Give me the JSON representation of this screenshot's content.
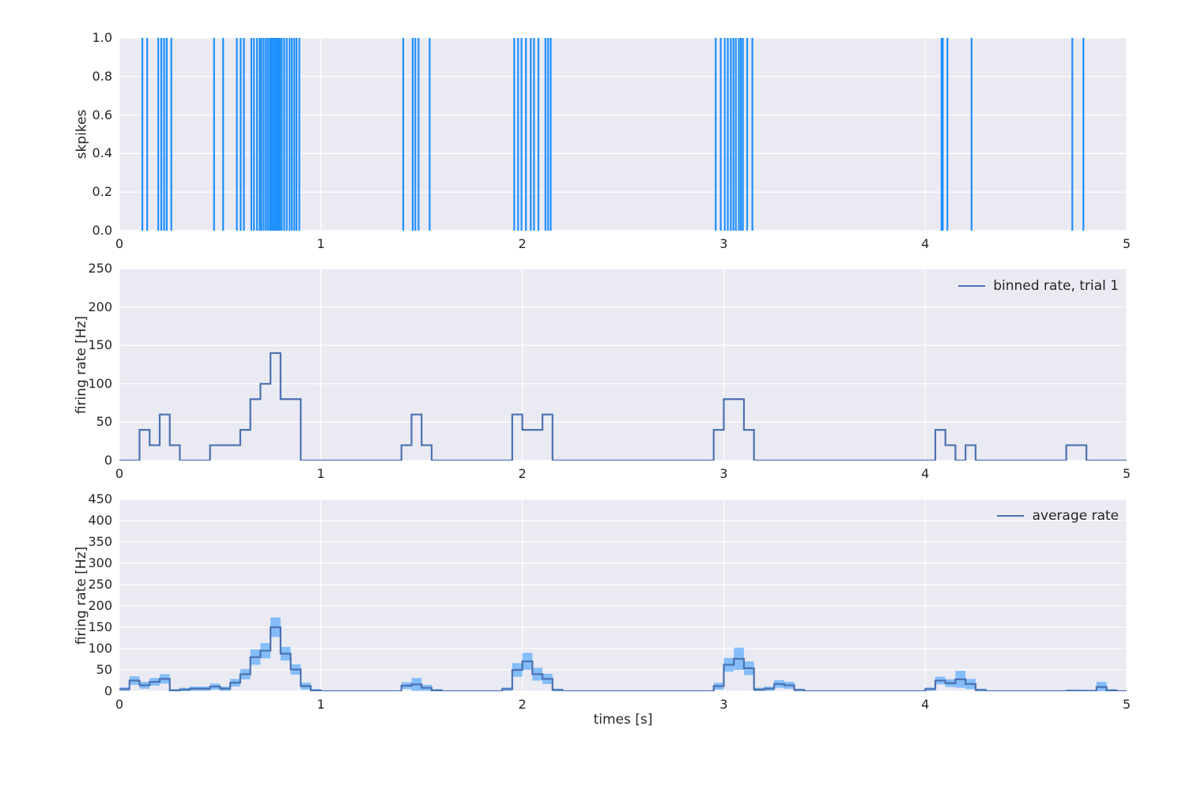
{
  "figure": {
    "background": "#ffffff",
    "axes_background": "#eaeaf2",
    "grid_color": "#ffffff",
    "text_color": "#262626",
    "spike_color": "#1e90ff",
    "line_color": "#4c72b0",
    "band_color": "rgba(30,144,255,0.5)"
  },
  "panels": {
    "raster": {
      "ylabel": "skpikes",
      "yticks": [
        "0.0",
        "0.2",
        "0.4",
        "0.6",
        "0.8",
        "1.0"
      ],
      "xticks": [
        "0",
        "1",
        "2",
        "3",
        "4",
        "5"
      ]
    },
    "trial": {
      "ylabel": "firing rate [Hz]",
      "yticks": [
        "0",
        "50",
        "100",
        "150",
        "200",
        "250"
      ],
      "xticks": [
        "0",
        "1",
        "2",
        "3",
        "4",
        "5"
      ],
      "legend_label": "binned rate, trial 1"
    },
    "average": {
      "ylabel": "firing rate [Hz]",
      "xlabel": "times [s]",
      "yticks": [
        "0",
        "50",
        "100",
        "150",
        "200",
        "250",
        "300",
        "350",
        "400",
        "450"
      ],
      "xticks": [
        "0",
        "1",
        "2",
        "3",
        "4",
        "5"
      ],
      "legend_label": "average rate"
    }
  },
  "chart_data": [
    {
      "type": "scatter",
      "subtype": "event-raster",
      "ylabel": "skpikes",
      "xlim": [
        0,
        5
      ],
      "ylim": [
        0,
        1
      ],
      "x_ticks": [
        0,
        1,
        2,
        3,
        4,
        5
      ],
      "y_ticks": [
        0.0,
        0.2,
        0.4,
        0.6,
        0.8,
        1.0
      ],
      "grid": true,
      "spike_times": [
        0.114,
        0.138,
        0.193,
        0.208,
        0.222,
        0.235,
        0.258,
        0.47,
        0.515,
        0.583,
        0.602,
        0.618,
        0.655,
        0.668,
        0.683,
        0.696,
        0.705,
        0.716,
        0.727,
        0.737,
        0.747,
        0.754,
        0.762,
        0.77,
        0.777,
        0.784,
        0.79,
        0.797,
        0.806,
        0.818,
        0.831,
        0.845,
        0.856,
        0.868,
        0.879,
        0.893,
        1.409,
        1.456,
        1.469,
        1.485,
        1.54,
        1.96,
        1.979,
        1.996,
        2.018,
        2.042,
        2.058,
        2.08,
        2.115,
        2.128,
        2.141,
        2.96,
        2.985,
        3.005,
        3.02,
        3.035,
        3.048,
        3.06,
        3.075,
        3.085,
        3.095,
        3.116,
        3.142,
        4.081,
        4.087,
        4.11,
        4.23,
        4.73,
        4.785
      ]
    },
    {
      "type": "line",
      "subtype": "step-histogram",
      "ylabel": "firing rate [Hz]",
      "legend": [
        "binned rate, trial 1"
      ],
      "legend_position": "upper right",
      "xlim": [
        0,
        5
      ],
      "ylim": [
        0,
        250
      ],
      "x_ticks": [
        0,
        1,
        2,
        3,
        4,
        5
      ],
      "y_ticks": [
        0,
        50,
        100,
        150,
        200,
        250
      ],
      "grid": true,
      "bin_width": 0.05,
      "bin_start": 0,
      "values": [
        0,
        0,
        40,
        20,
        60,
        20,
        0,
        0,
        0,
        20,
        20,
        20,
        40,
        80,
        100,
        140,
        80,
        80,
        0,
        0,
        0,
        0,
        0,
        0,
        0,
        0,
        0,
        0,
        20,
        60,
        20,
        0,
        0,
        0,
        0,
        0,
        0,
        0,
        0,
        60,
        40,
        40,
        60,
        0,
        0,
        0,
        0,
        0,
        0,
        0,
        0,
        0,
        0,
        0,
        0,
        0,
        0,
        0,
        0,
        40,
        80,
        80,
        40,
        0,
        0,
        0,
        0,
        0,
        0,
        0,
        0,
        0,
        0,
        0,
        0,
        0,
        0,
        0,
        0,
        0,
        0,
        40,
        20,
        0,
        20,
        0,
        0,
        0,
        0,
        0,
        0,
        0,
        0,
        0,
        20,
        20,
        0,
        0,
        0,
        0
      ]
    },
    {
      "type": "area",
      "subtype": "step-mean-with-std-band",
      "ylabel": "firing rate [Hz]",
      "xlabel": "times [s]",
      "legend": [
        "average rate"
      ],
      "legend_position": "upper right",
      "xlim": [
        0,
        5
      ],
      "ylim": [
        0,
        450
      ],
      "x_ticks": [
        0,
        1,
        2,
        3,
        4,
        5
      ],
      "y_ticks": [
        0,
        50,
        100,
        150,
        200,
        250,
        300,
        350,
        400,
        450
      ],
      "grid": true,
      "bin_width": 0.05,
      "bin_start": 0,
      "series": [
        {
          "name": "mean",
          "values": [
            5,
            25,
            14,
            22,
            29,
            2,
            4,
            6,
            6,
            11,
            6,
            20,
            40,
            80,
            95,
            150,
            88,
            51,
            12,
            2,
            0,
            0,
            0,
            0,
            0,
            0,
            0,
            0,
            13,
            16,
            8,
            2,
            0,
            0,
            0,
            0,
            0,
            0,
            5,
            50,
            70,
            40,
            29,
            3,
            0,
            0,
            0,
            0,
            0,
            0,
            0,
            0,
            0,
            0,
            0,
            0,
            0,
            0,
            0,
            12,
            62,
            76,
            54,
            4,
            6,
            17,
            14,
            3,
            0,
            0,
            0,
            0,
            0,
            0,
            0,
            0,
            0,
            0,
            0,
            0,
            5,
            25,
            19,
            28,
            17,
            3,
            0,
            0,
            0,
            0,
            0,
            0,
            0,
            0,
            1,
            1,
            1,
            10,
            2,
            0
          ]
        },
        {
          "name": "std",
          "values": [
            4,
            10,
            8,
            9,
            11,
            3,
            4,
            5,
            5,
            7,
            5,
            9,
            12,
            18,
            18,
            23,
            16,
            12,
            8,
            3,
            0,
            0,
            0,
            0,
            0,
            0,
            0,
            0,
            8,
            15,
            7,
            3,
            0,
            0,
            0,
            0,
            0,
            0,
            4,
            16,
            20,
            15,
            12,
            3,
            0,
            0,
            0,
            0,
            0,
            0,
            0,
            0,
            0,
            0,
            0,
            0,
            0,
            0,
            0,
            8,
            16,
            26,
            16,
            4,
            5,
            9,
            8,
            3,
            0,
            0,
            0,
            0,
            0,
            0,
            0,
            0,
            0,
            0,
            0,
            0,
            4,
            9,
            9,
            20,
            12,
            3,
            0,
            0,
            0,
            0,
            0,
            0,
            0,
            0,
            3,
            3,
            2,
            12,
            3,
            0
          ]
        }
      ]
    }
  ]
}
